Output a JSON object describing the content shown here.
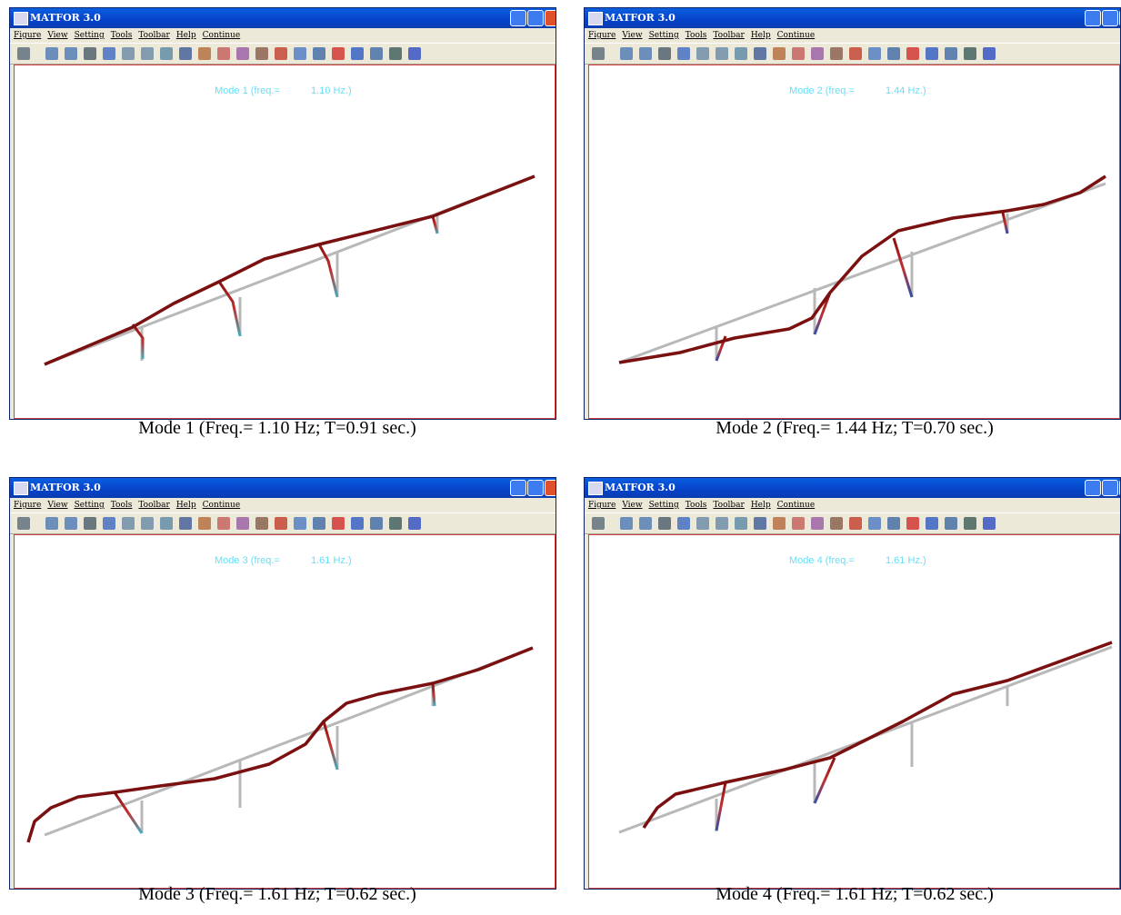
{
  "panels": [
    {
      "window_title": "MATFOR 3.0",
      "menu": [
        "Figure",
        "View",
        "Setting",
        "Tools",
        "Toolbar",
        "Help",
        "Continue"
      ],
      "plot_label": "Mode 1 (freq.=",
      "plot_freq": "1.10 Hz.)",
      "caption": "Mode 1 (Freq.= 1.10 Hz; T=0.91 sec.)"
    },
    {
      "window_title": "MATFOR 3.0",
      "menu": [
        "Figure",
        "View",
        "Setting",
        "Tools",
        "Toolbar",
        "Help",
        "Continue"
      ],
      "plot_label": "Mode 2 (freq.=",
      "plot_freq": "1.44 Hz.)",
      "caption": "Mode 2 (Freq.= 1.44 Hz; T=0.70 sec.)"
    },
    {
      "window_title": "MATFOR 3.0",
      "menu": [
        "Figure",
        "View",
        "Setting",
        "Tools",
        "Toolbar",
        "Help",
        "Continue"
      ],
      "plot_label": "Mode 3 (freq.=",
      "plot_freq": "1.61 Hz.)",
      "caption": "Mode 3 (Freq.= 1.61 Hz; T=0.62 sec.)"
    },
    {
      "window_title": "MATFOR 3.0",
      "menu": [
        "Figure",
        "View",
        "Setting",
        "Tools",
        "Toolbar",
        "Help",
        "Continue"
      ],
      "plot_label": "Mode 4 (freq.=",
      "plot_freq": "1.61 Hz.)",
      "caption": "Mode 4 (Freq.= 1.61 Hz; T=0.62 sec.)"
    }
  ]
}
